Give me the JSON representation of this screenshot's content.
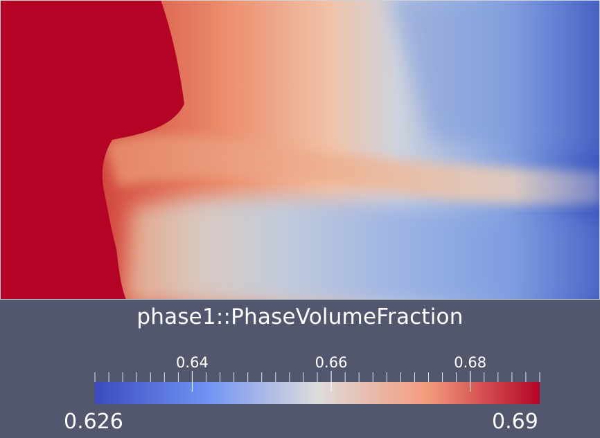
{
  "scalar_bar": {
    "title": "phase1::PhaseVolumeFraction",
    "range_min_label": "0.626",
    "range_max_label": "0.69",
    "range": [
      0.626,
      0.69
    ],
    "ticks": [
      {
        "value": 0.64,
        "label": "0.64"
      },
      {
        "value": 0.66,
        "label": "0.66"
      },
      {
        "value": 0.68,
        "label": "0.68"
      }
    ],
    "minor_tick_step": 0.002,
    "colormap": "Cool to Warm",
    "colors": {
      "low": "#3b4cc0",
      "mid": "#dddcdb",
      "high": "#b40426"
    }
  },
  "viewport": {
    "background": "#52576e",
    "field_border": "#d0d2d8"
  }
}
